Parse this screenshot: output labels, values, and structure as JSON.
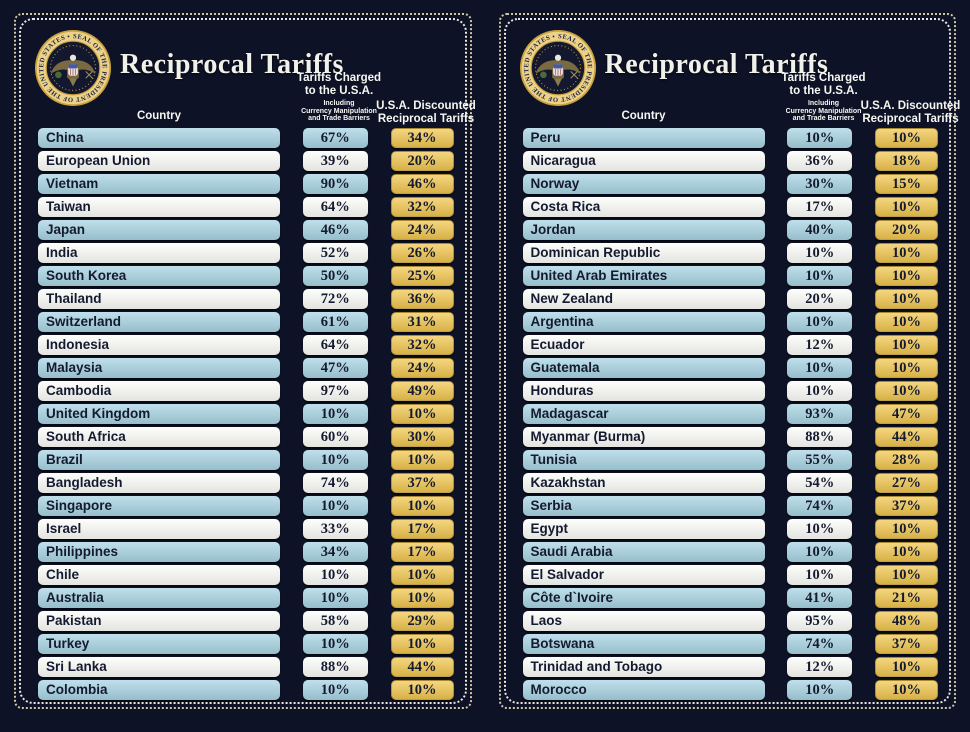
{
  "title": "Reciprocal Tariffs",
  "seal": {
    "ring_text": "SEAL OF THE PRESIDENT OF THE UNITED STATES • •"
  },
  "columns": {
    "country": "Country",
    "charged_line1": "Tariffs Charged",
    "charged_line2": "to the U.S.A.",
    "charged_sub1": "Including",
    "charged_sub2": "Currency Manipulation",
    "charged_sub3": "and Trade Barriers",
    "discounted_line1": "U.S.A. Discounted",
    "discounted_line2": "Reciprocal Tariffs"
  },
  "colors": {
    "background": "#0e1226",
    "row_blue": "#a7d3e3",
    "row_white": "#fdfdfa",
    "gold": "#f0c64f",
    "text_dark": "#141a30",
    "header_text": "#f7f7f2"
  },
  "chart_data": {
    "type": "table",
    "title": "Reciprocal Tariffs",
    "columns": [
      "Country",
      "Tariffs Charged to the U.S.A. Including Currency Manipulation and Trade Barriers",
      "U.S.A. Discounted Reciprocal Tariffs"
    ],
    "panels": [
      {
        "rows": [
          {
            "country": "China",
            "charged": "67%",
            "discounted": "34%"
          },
          {
            "country": "European Union",
            "charged": "39%",
            "discounted": "20%"
          },
          {
            "country": "Vietnam",
            "charged": "90%",
            "discounted": "46%"
          },
          {
            "country": "Taiwan",
            "charged": "64%",
            "discounted": "32%"
          },
          {
            "country": "Japan",
            "charged": "46%",
            "discounted": "24%"
          },
          {
            "country": "India",
            "charged": "52%",
            "discounted": "26%"
          },
          {
            "country": "South Korea",
            "charged": "50%",
            "discounted": "25%"
          },
          {
            "country": "Thailand",
            "charged": "72%",
            "discounted": "36%"
          },
          {
            "country": "Switzerland",
            "charged": "61%",
            "discounted": "31%"
          },
          {
            "country": "Indonesia",
            "charged": "64%",
            "discounted": "32%"
          },
          {
            "country": "Malaysia",
            "charged": "47%",
            "discounted": "24%"
          },
          {
            "country": "Cambodia",
            "charged": "97%",
            "discounted": "49%"
          },
          {
            "country": "United Kingdom",
            "charged": "10%",
            "discounted": "10%"
          },
          {
            "country": "South Africa",
            "charged": "60%",
            "discounted": "30%"
          },
          {
            "country": "Brazil",
            "charged": "10%",
            "discounted": "10%"
          },
          {
            "country": "Bangladesh",
            "charged": "74%",
            "discounted": "37%"
          },
          {
            "country": "Singapore",
            "charged": "10%",
            "discounted": "10%"
          },
          {
            "country": "Israel",
            "charged": "33%",
            "discounted": "17%"
          },
          {
            "country": "Philippines",
            "charged": "34%",
            "discounted": "17%"
          },
          {
            "country": "Chile",
            "charged": "10%",
            "discounted": "10%"
          },
          {
            "country": "Australia",
            "charged": "10%",
            "discounted": "10%"
          },
          {
            "country": "Pakistan",
            "charged": "58%",
            "discounted": "29%"
          },
          {
            "country": "Turkey",
            "charged": "10%",
            "discounted": "10%"
          },
          {
            "country": "Sri Lanka",
            "charged": "88%",
            "discounted": "44%"
          },
          {
            "country": "Colombia",
            "charged": "10%",
            "discounted": "10%"
          }
        ]
      },
      {
        "rows": [
          {
            "country": "Peru",
            "charged": "10%",
            "discounted": "10%"
          },
          {
            "country": "Nicaragua",
            "charged": "36%",
            "discounted": "18%"
          },
          {
            "country": "Norway",
            "charged": "30%",
            "discounted": "15%"
          },
          {
            "country": "Costa Rica",
            "charged": "17%",
            "discounted": "10%"
          },
          {
            "country": "Jordan",
            "charged": "40%",
            "discounted": "20%"
          },
          {
            "country": "Dominican Republic",
            "charged": "10%",
            "discounted": "10%"
          },
          {
            "country": "United Arab Emirates",
            "charged": "10%",
            "discounted": "10%"
          },
          {
            "country": "New Zealand",
            "charged": "20%",
            "discounted": "10%"
          },
          {
            "country": "Argentina",
            "charged": "10%",
            "discounted": "10%"
          },
          {
            "country": "Ecuador",
            "charged": "12%",
            "discounted": "10%"
          },
          {
            "country": "Guatemala",
            "charged": "10%",
            "discounted": "10%"
          },
          {
            "country": "Honduras",
            "charged": "10%",
            "discounted": "10%"
          },
          {
            "country": "Madagascar",
            "charged": "93%",
            "discounted": "47%"
          },
          {
            "country": "Myanmar (Burma)",
            "charged": "88%",
            "discounted": "44%"
          },
          {
            "country": "Tunisia",
            "charged": "55%",
            "discounted": "28%"
          },
          {
            "country": "Kazakhstan",
            "charged": "54%",
            "discounted": "27%"
          },
          {
            "country": "Serbia",
            "charged": "74%",
            "discounted": "37%"
          },
          {
            "country": "Egypt",
            "charged": "10%",
            "discounted": "10%"
          },
          {
            "country": "Saudi Arabia",
            "charged": "10%",
            "discounted": "10%"
          },
          {
            "country": "El Salvador",
            "charged": "10%",
            "discounted": "10%"
          },
          {
            "country": "Côte d`Ivoire",
            "charged": "41%",
            "discounted": "21%"
          },
          {
            "country": "Laos",
            "charged": "95%",
            "discounted": "48%"
          },
          {
            "country": "Botswana",
            "charged": "74%",
            "discounted": "37%"
          },
          {
            "country": "Trinidad and Tobago",
            "charged": "12%",
            "discounted": "10%"
          },
          {
            "country": "Morocco",
            "charged": "10%",
            "discounted": "10%"
          }
        ]
      }
    ]
  }
}
